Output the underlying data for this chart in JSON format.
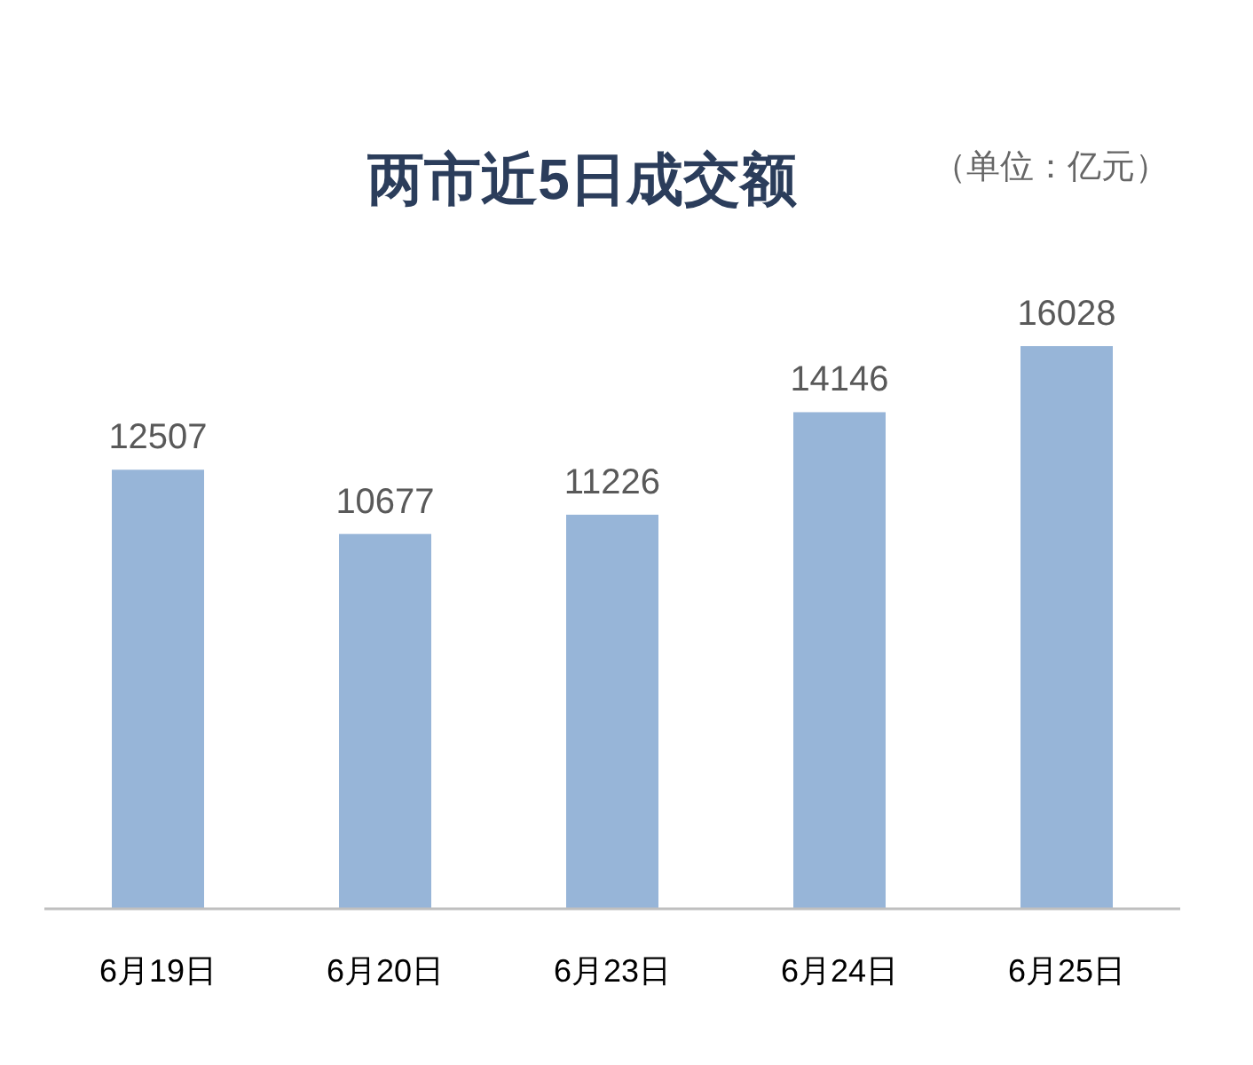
{
  "chart_data": {
    "type": "bar",
    "title": "两市近5日成交额",
    "subtitle": "（单位：亿元）",
    "categories": [
      "6月19日",
      "6月20日",
      "6月23日",
      "6月24日",
      "6月25日"
    ],
    "values": [
      12507,
      10677,
      11226,
      14146,
      16028
    ],
    "color": "#97b5d8",
    "data_labels": true
  }
}
